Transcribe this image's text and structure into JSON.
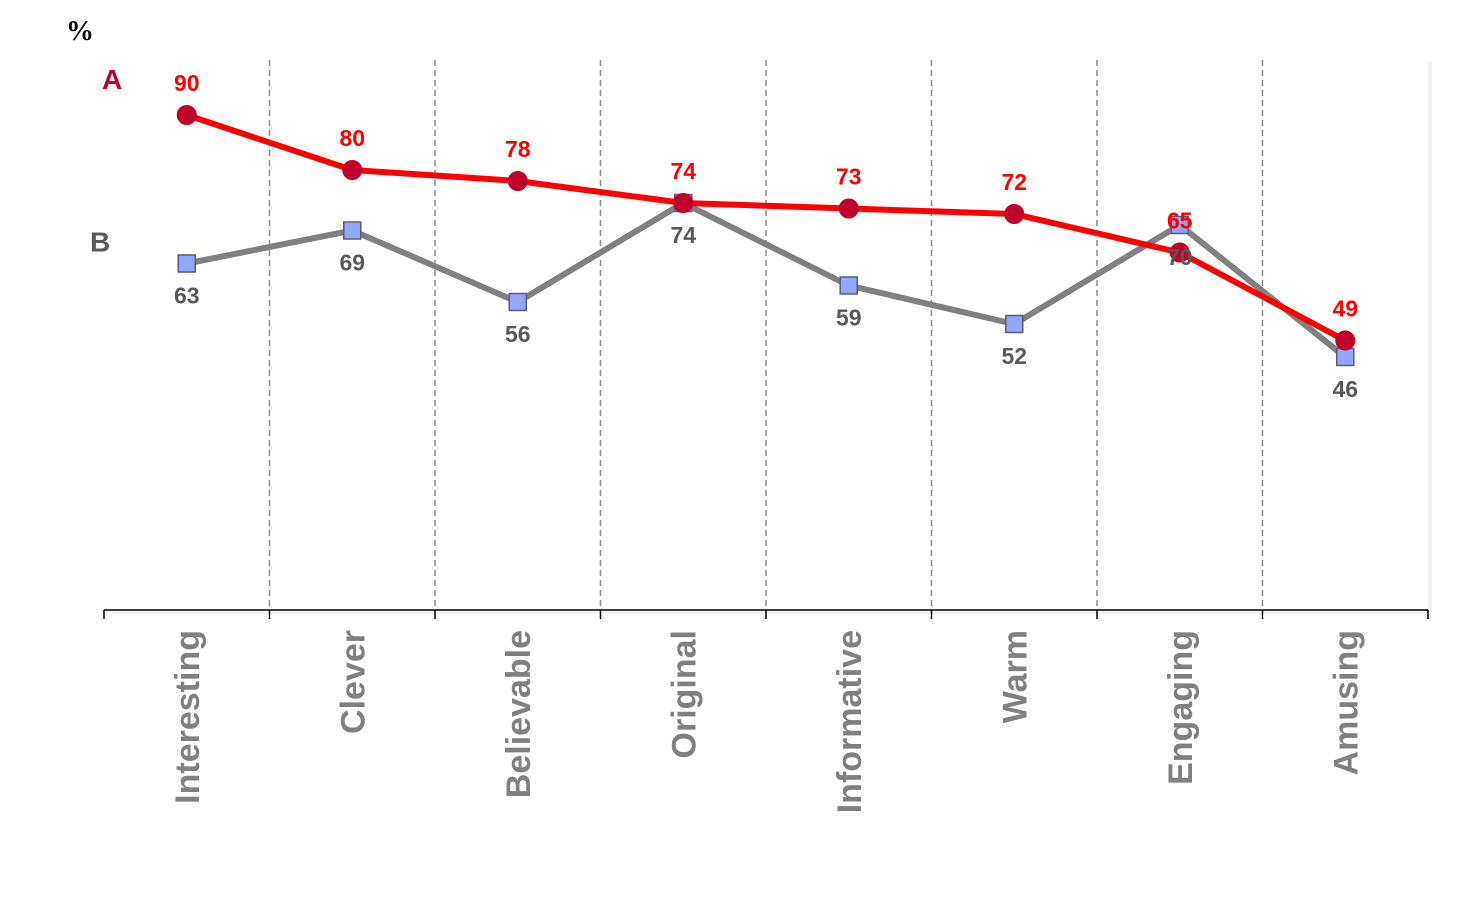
{
  "chart_data": {
    "type": "line",
    "unit_label": "%",
    "categories": [
      "Interesting",
      "Clever",
      "Believable",
      "Original",
      "Informative",
      "Warm",
      "Engaging",
      "Amusing"
    ],
    "series": [
      {
        "name": "A",
        "values": [
          90,
          80,
          78,
          74,
          73,
          72,
          65,
          49
        ],
        "color": "#ff0000",
        "marker": "circle",
        "marker_color": "#c0002a",
        "label_color": "#ff0000"
      },
      {
        "name": "B",
        "values": [
          63,
          69,
          56,
          74,
          59,
          52,
          70,
          46
        ],
        "color": "#808080",
        "marker": "square",
        "marker_color": "#91a7fa",
        "label_color": "#595959"
      }
    ],
    "ylim": [
      0,
      100
    ],
    "grid": "vertical-dashed",
    "legend": "inline-left"
  }
}
